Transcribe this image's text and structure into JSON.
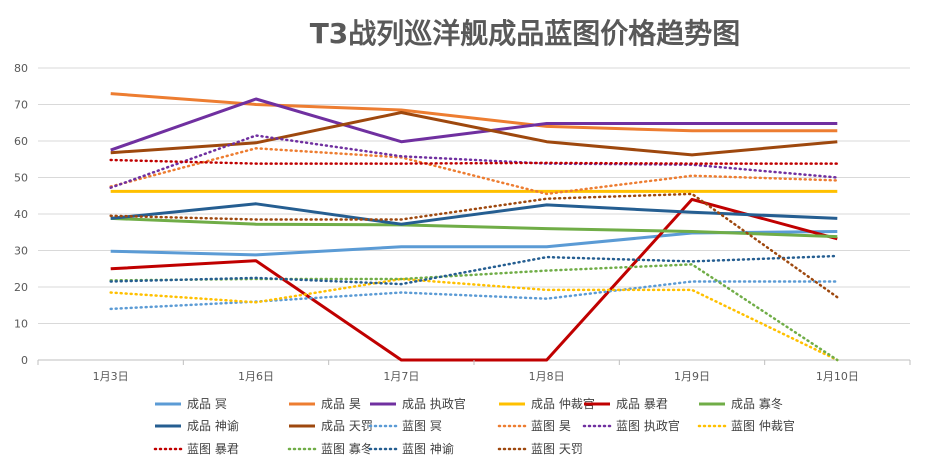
{
  "chart_data": {
    "type": "line",
    "title": "T3战列巡洋舰成品蓝图价格趋势图",
    "xlabel": "",
    "ylabel": "",
    "categories": [
      "1月3日",
      "1月6日",
      "1月7日",
      "1月8日",
      "1月9日",
      "1月10日"
    ],
    "ylim": [
      0,
      80
    ],
    "yticks": [
      0,
      10,
      20,
      30,
      40,
      50,
      60,
      70,
      80
    ],
    "grid": true,
    "legend_position": "bottom",
    "series": [
      {
        "name": "成品 冥",
        "color": "#5B9BD5",
        "dash": "solid",
        "values": [
          29.8,
          28.8,
          31.0,
          31.0,
          34.8,
          35.2
        ]
      },
      {
        "name": "成品 昊",
        "color": "#ED7D31",
        "dash": "solid",
        "values": [
          73.0,
          70.0,
          68.5,
          64.0,
          62.8,
          62.8
        ]
      },
      {
        "name": "成品 执政官",
        "color": "#7030A0",
        "dash": "solid",
        "values": [
          57.5,
          71.5,
          59.8,
          64.8,
          64.8,
          64.8
        ]
      },
      {
        "name": "成品 仲裁官",
        "color": "#FFC000",
        "dash": "solid",
        "values": [
          46.2,
          46.2,
          46.2,
          46.2,
          46.2,
          46.2
        ]
      },
      {
        "name": "成品 暴君",
        "color": "#C00000",
        "dash": "solid",
        "values": [
          25.0,
          27.2,
          0,
          0,
          44.0,
          33.2
        ]
      },
      {
        "name": "成品 寡冬",
        "color": "#70AD47",
        "dash": "solid",
        "values": [
          38.8,
          37.2,
          37.0,
          36.0,
          35.2,
          33.8
        ]
      },
      {
        "name": "成品 神谕",
        "color": "#255E91",
        "dash": "solid",
        "values": [
          38.8,
          42.8,
          37.2,
          42.5,
          40.5,
          38.8
        ]
      },
      {
        "name": "成品 天罚",
        "color": "#9E480E",
        "dash": "solid",
        "values": [
          56.8,
          59.5,
          67.8,
          59.8,
          56.2,
          59.8
        ]
      },
      {
        "name": "蓝图 冥",
        "color": "#5B9BD5",
        "dash": "dot",
        "values": [
          14.0,
          16.0,
          18.5,
          16.8,
          21.5,
          21.5
        ]
      },
      {
        "name": "蓝图 昊",
        "color": "#ED7D31",
        "dash": "dot",
        "values": [
          47.5,
          58.0,
          55.5,
          45.5,
          50.5,
          49.2
        ]
      },
      {
        "name": "蓝图 执政官",
        "color": "#7030A0",
        "dash": "dot",
        "values": [
          47.2,
          61.5,
          55.8,
          53.8,
          53.5,
          50.0
        ]
      },
      {
        "name": "蓝图 仲裁官",
        "color": "#FFC000",
        "dash": "dot",
        "values": [
          18.5,
          15.8,
          22.2,
          19.2,
          19.2,
          0
        ]
      },
      {
        "name": "蓝图 暴君",
        "color": "#C00000",
        "dash": "dot",
        "values": [
          54.8,
          53.8,
          53.8,
          54.0,
          53.8,
          53.8
        ]
      },
      {
        "name": "蓝图 寡冬",
        "color": "#70AD47",
        "dash": "dot",
        "values": [
          21.8,
          22.2,
          22.2,
          24.5,
          26.2,
          0
        ]
      },
      {
        "name": "蓝图 神谕",
        "color": "#255E91",
        "dash": "dot",
        "values": [
          21.5,
          22.5,
          20.8,
          28.2,
          27.0,
          28.5
        ]
      },
      {
        "name": "蓝图 天罚",
        "color": "#9E480E",
        "dash": "dot",
        "values": [
          39.5,
          38.5,
          38.5,
          44.2,
          45.5,
          17.2
        ]
      }
    ]
  }
}
